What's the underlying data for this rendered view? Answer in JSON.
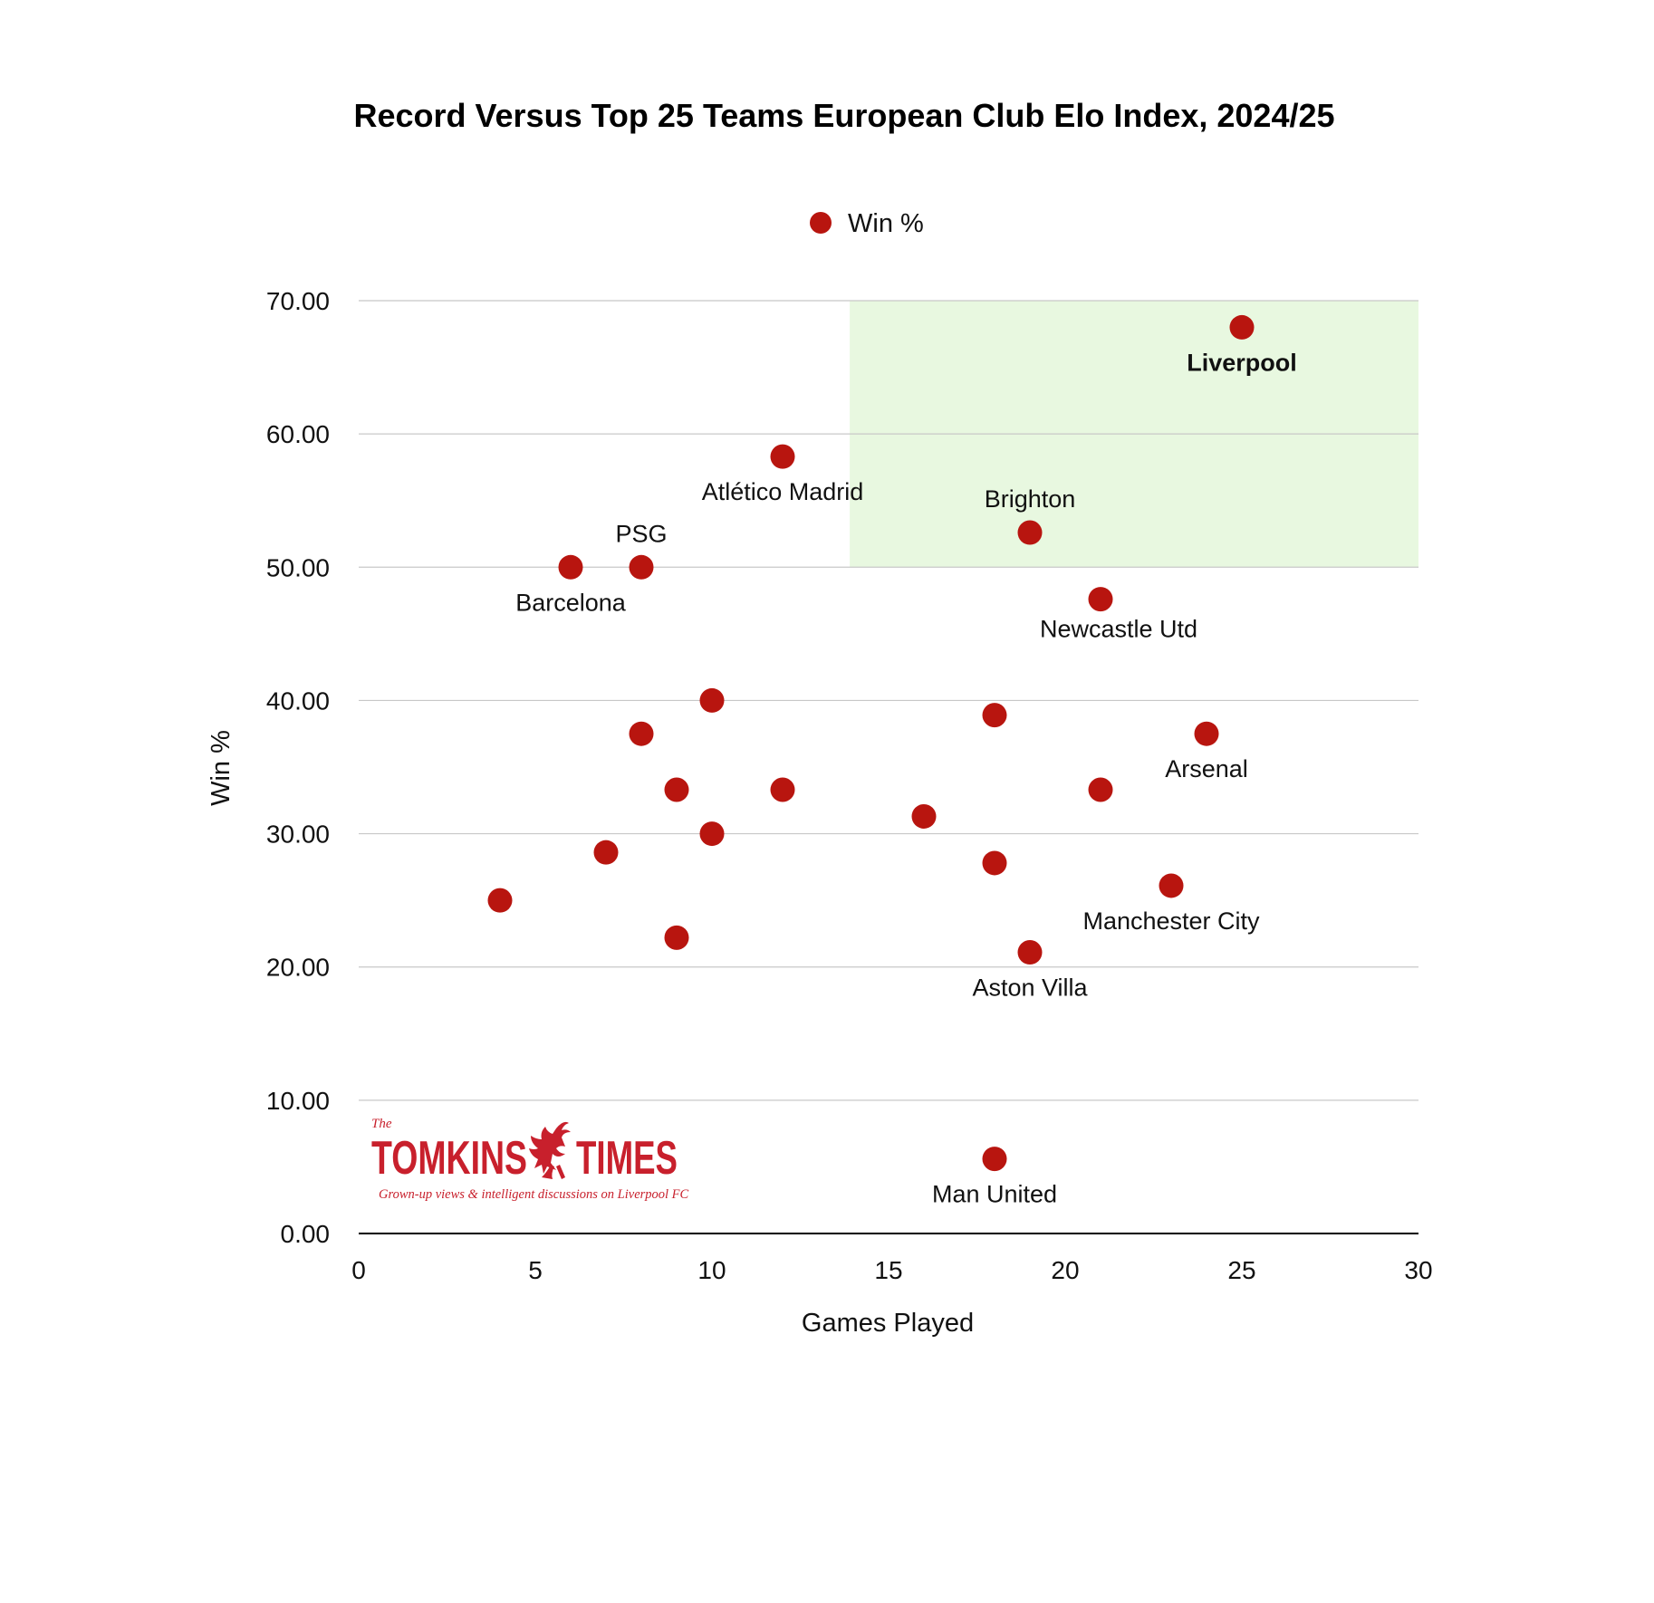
{
  "chart_data": {
    "type": "scatter",
    "title": "Record Versus Top 25 Teams European Club Elo Index, 2024/25",
    "xlabel": "Games Played",
    "ylabel": "Win %",
    "xlim": [
      0,
      30
    ],
    "ylim": [
      0,
      70
    ],
    "x_ticks": [
      "0",
      "5",
      "10",
      "15",
      "20",
      "25",
      "30"
    ],
    "y_ticks": [
      "0.00",
      "10.00",
      "20.00",
      "30.00",
      "40.00",
      "50.00",
      "60.00",
      "70.00"
    ],
    "grid": "horizontal",
    "legend": {
      "position": "top-center",
      "entries": [
        "Win %"
      ]
    },
    "highlight_region": {
      "x": [
        13.9,
        30
      ],
      "y": [
        50,
        70
      ],
      "color": "#e8f8e0"
    },
    "series": [
      {
        "name": "Win %",
        "color": "#b8150f",
        "points": [
          {
            "x": 25,
            "y": 68.0,
            "label": "Liverpool",
            "bold": true,
            "label_pos": "below"
          },
          {
            "x": 12,
            "y": 58.3,
            "label": "Atlético Madrid",
            "label_pos": "below"
          },
          {
            "x": 19,
            "y": 52.6,
            "label": "Brighton",
            "label_pos": "above"
          },
          {
            "x": 8,
            "y": 50.0,
            "label": "PSG",
            "label_pos": "above"
          },
          {
            "x": 6,
            "y": 50.0,
            "label": "Barcelona",
            "label_pos": "below"
          },
          {
            "x": 21,
            "y": 47.6,
            "label": "Newcastle Utd",
            "label_pos": "below-right"
          },
          {
            "x": 10,
            "y": 40.0,
            "label": ""
          },
          {
            "x": 18,
            "y": 38.9,
            "label": ""
          },
          {
            "x": 8,
            "y": 37.5,
            "label": ""
          },
          {
            "x": 24,
            "y": 37.5,
            "label": "Arsenal",
            "label_pos": "below"
          },
          {
            "x": 9,
            "y": 33.3,
            "label": ""
          },
          {
            "x": 12,
            "y": 33.3,
            "label": ""
          },
          {
            "x": 21,
            "y": 33.3,
            "label": ""
          },
          {
            "x": 16,
            "y": 31.3,
            "label": ""
          },
          {
            "x": 10,
            "y": 30.0,
            "label": ""
          },
          {
            "x": 7,
            "y": 28.6,
            "label": ""
          },
          {
            "x": 18,
            "y": 27.8,
            "label": ""
          },
          {
            "x": 23,
            "y": 26.1,
            "label": "Manchester City",
            "label_pos": "below"
          },
          {
            "x": 4,
            "y": 25.0,
            "label": ""
          },
          {
            "x": 9,
            "y": 22.2,
            "label": ""
          },
          {
            "x": 19,
            "y": 21.1,
            "label": "Aston Villa",
            "label_pos": "below"
          },
          {
            "x": 18,
            "y": 5.6,
            "label": "Man United",
            "label_pos": "below"
          }
        ]
      }
    ]
  },
  "logo": {
    "the": "The",
    "name_left": "TOMKINS",
    "name_right": "TIMES",
    "tagline": "Grown-up views & intelligent discussions on Liverpool FC"
  }
}
